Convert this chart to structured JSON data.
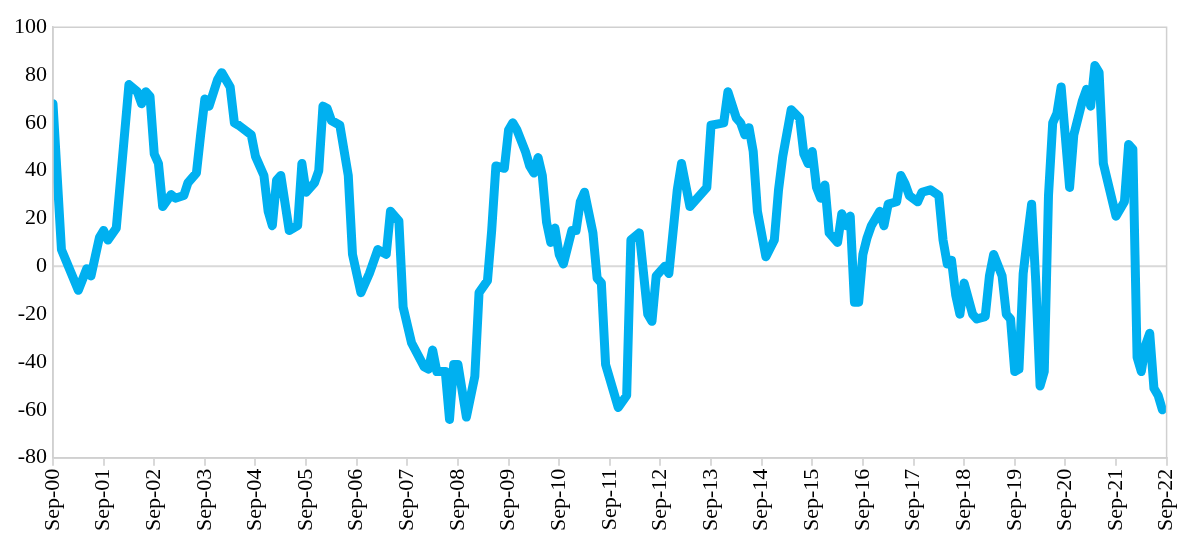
{
  "chart_data": {
    "type": "line",
    "xlim": [
      "2000-09",
      "2022-09"
    ],
    "ylim": [
      -80,
      100
    ],
    "yticks": [
      -80,
      -60,
      -40,
      -20,
      0,
      20,
      40,
      60,
      80,
      100
    ],
    "xticks": [
      {
        "value": "2000-09",
        "label": "Sep-00"
      },
      {
        "value": "2001-09",
        "label": "Sep-01"
      },
      {
        "value": "2002-09",
        "label": "Sep-02"
      },
      {
        "value": "2003-09",
        "label": "Sep-03"
      },
      {
        "value": "2004-09",
        "label": "Sep-04"
      },
      {
        "value": "2005-09",
        "label": "Sep-05"
      },
      {
        "value": "2006-09",
        "label": "Sep-06"
      },
      {
        "value": "2007-09",
        "label": "Sep-07"
      },
      {
        "value": "2008-09",
        "label": "Sep-08"
      },
      {
        "value": "2009-09",
        "label": "Sep-09"
      },
      {
        "value": "2010-09",
        "label": "Sep-10"
      },
      {
        "value": "2011-09",
        "label": "Sep-11"
      },
      {
        "value": "2012-09",
        "label": "Sep-12"
      },
      {
        "value": "2013-09",
        "label": "Sep-13"
      },
      {
        "value": "2014-09",
        "label": "Sep-14"
      },
      {
        "value": "2015-09",
        "label": "Sep-15"
      },
      {
        "value": "2016-09",
        "label": "Sep-16"
      },
      {
        "value": "2017-09",
        "label": "Sep-17"
      },
      {
        "value": "2018-09",
        "label": "Sep-18"
      },
      {
        "value": "2019-09",
        "label": "Sep-19"
      },
      {
        "value": "2020-09",
        "label": "Sep-20"
      },
      {
        "value": "2021-09",
        "label": "Sep-21"
      },
      {
        "value": "2022-09",
        "label": "Sep-22"
      }
    ],
    "legend": false,
    "marker": "none",
    "line_style": "solid",
    "ref_lines": [
      {
        "axis": "y",
        "value": 0,
        "color": "#d9d9d9"
      }
    ],
    "x": [
      "2000-09",
      "2000-11",
      "2001-03",
      "2001-05",
      "2001-06",
      "2001-08",
      "2001-09",
      "2001-10",
      "2001-12",
      "2002-03",
      "2002-05",
      "2002-06",
      "2002-07",
      "2002-08",
      "2002-09",
      "2002-10",
      "2002-11",
      "2003-01",
      "2003-02",
      "2003-04",
      "2003-05",
      "2003-07",
      "2003-08",
      "2003-09",
      "2003-10",
      "2003-12",
      "2004-01",
      "2004-03",
      "2004-04",
      "2004-05",
      "2004-08",
      "2004-09",
      "2004-11",
      "2004-12",
      "2005-01",
      "2005-02",
      "2005-03",
      "2005-05",
      "2005-07",
      "2005-08",
      "2005-09",
      "2005-11",
      "2005-12",
      "2006-01",
      "2006-02",
      "2006-03",
      "2006-05",
      "2006-07",
      "2006-08",
      "2006-10",
      "2006-12",
      "2007-02",
      "2007-04",
      "2007-05",
      "2007-07",
      "2007-08",
      "2007-10",
      "2008-01",
      "2008-02",
      "2008-03",
      "2008-04",
      "2008-06",
      "2008-07",
      "2008-08",
      "2008-09",
      "2008-11",
      "2009-01",
      "2009-02",
      "2009-04",
      "2009-05",
      "2009-06",
      "2009-08",
      "2009-09",
      "2009-10",
      "2009-11",
      "2010-01",
      "2010-02",
      "2010-03",
      "2010-04",
      "2010-05",
      "2010-06",
      "2010-07",
      "2010-08",
      "2010-09",
      "2010-10",
      "2010-12",
      "2011-01",
      "2011-02",
      "2011-03",
      "2011-05",
      "2011-06",
      "2011-07",
      "2011-08",
      "2011-11",
      "2012-01",
      "2012-02",
      "2012-04",
      "2012-06",
      "2012-07",
      "2012-08",
      "2012-10",
      "2012-11",
      "2013-01",
      "2013-02",
      "2013-04",
      "2013-08",
      "2013-09",
      "2013-12",
      "2014-01",
      "2014-03",
      "2014-04",
      "2014-05",
      "2014-06",
      "2014-07",
      "2014-08",
      "2014-10",
      "2014-12",
      "2015-01",
      "2015-02",
      "2015-04",
      "2015-06",
      "2015-07",
      "2015-08",
      "2015-09",
      "2015-10",
      "2015-11",
      "2015-12",
      "2016-01",
      "2016-03",
      "2016-04",
      "2016-05",
      "2016-06",
      "2016-07",
      "2016-08",
      "2016-09",
      "2016-10",
      "2016-11",
      "2017-01",
      "2017-02",
      "2017-03",
      "2017-05",
      "2017-06",
      "2017-07",
      "2017-08",
      "2017-10",
      "2017-11",
      "2018-01",
      "2018-03",
      "2018-04",
      "2018-05",
      "2018-06",
      "2018-07",
      "2018-08",
      "2018-09",
      "2018-11",
      "2018-12",
      "2019-02",
      "2019-03",
      "2019-04",
      "2019-06",
      "2019-07",
      "2019-08",
      "2019-09",
      "2019-10",
      "2019-11",
      "2019-12",
      "2020-01",
      "2020-02",
      "2020-03",
      "2020-04",
      "2020-05",
      "2020-06",
      "2020-07",
      "2020-08",
      "2020-10",
      "2020-11",
      "2021-01",
      "2021-02",
      "2021-03",
      "2021-04",
      "2021-05",
      "2021-06",
      "2021-09",
      "2021-11",
      "2021-12",
      "2022-01",
      "2022-02",
      "2022-03",
      "2022-04",
      "2022-05",
      "2022-06",
      "2022-07",
      "2022-08"
    ],
    "series": [
      {
        "color": "#00b0f0",
        "values": [
          68,
          7,
          -10,
          -1,
          -4,
          12,
          15,
          11,
          16,
          76,
          73,
          68,
          73,
          71,
          47,
          43,
          25,
          30,
          28.5,
          29.6,
          35,
          39,
          55,
          70,
          67,
          78,
          81,
          75,
          60,
          59,
          55,
          46,
          38,
          23,
          17,
          36,
          38,
          15,
          17,
          43,
          31,
          35,
          40,
          67,
          66,
          61,
          59,
          38,
          5,
          -11,
          -3,
          7,
          5,
          23,
          19,
          -17,
          -32,
          -42,
          -43,
          -35,
          -44,
          -44,
          -64,
          -41,
          -41,
          -63,
          -46,
          -11,
          -6,
          15,
          42,
          41,
          57,
          60,
          57,
          48,
          42,
          39,
          45.5,
          38,
          18.5,
          10,
          16,
          5,
          1,
          15,
          15,
          27,
          31,
          14,
          -5,
          -7,
          -41,
          -59,
          -54,
          11,
          14,
          -20,
          -23,
          -4,
          0,
          -3,
          32,
          43,
          25,
          33,
          59,
          60,
          73,
          62,
          60,
          55,
          58,
          48,
          23,
          4,
          11,
          32,
          46,
          65.5,
          62,
          47,
          43,
          48,
          33,
          28.5,
          34,
          14,
          10,
          22,
          17,
          21,
          -15,
          -15,
          5,
          12,
          17,
          23,
          17,
          26,
          27,
          38,
          34.5,
          29.6,
          27,
          31,
          32,
          29.6,
          11,
          1,
          2.6,
          -12,
          -20,
          -7,
          -20,
          -22,
          -21,
          -4,
          5,
          -4,
          -20,
          -22,
          -44,
          -43,
          -3,
          12,
          26,
          -7,
          -50,
          -44,
          29.6,
          60,
          64,
          75,
          33,
          55,
          69,
          74,
          67,
          84,
          81,
          43,
          21,
          27,
          51,
          49,
          -38,
          -44,
          -33,
          -28,
          -51,
          -54,
          -60
        ]
      }
    ]
  }
}
